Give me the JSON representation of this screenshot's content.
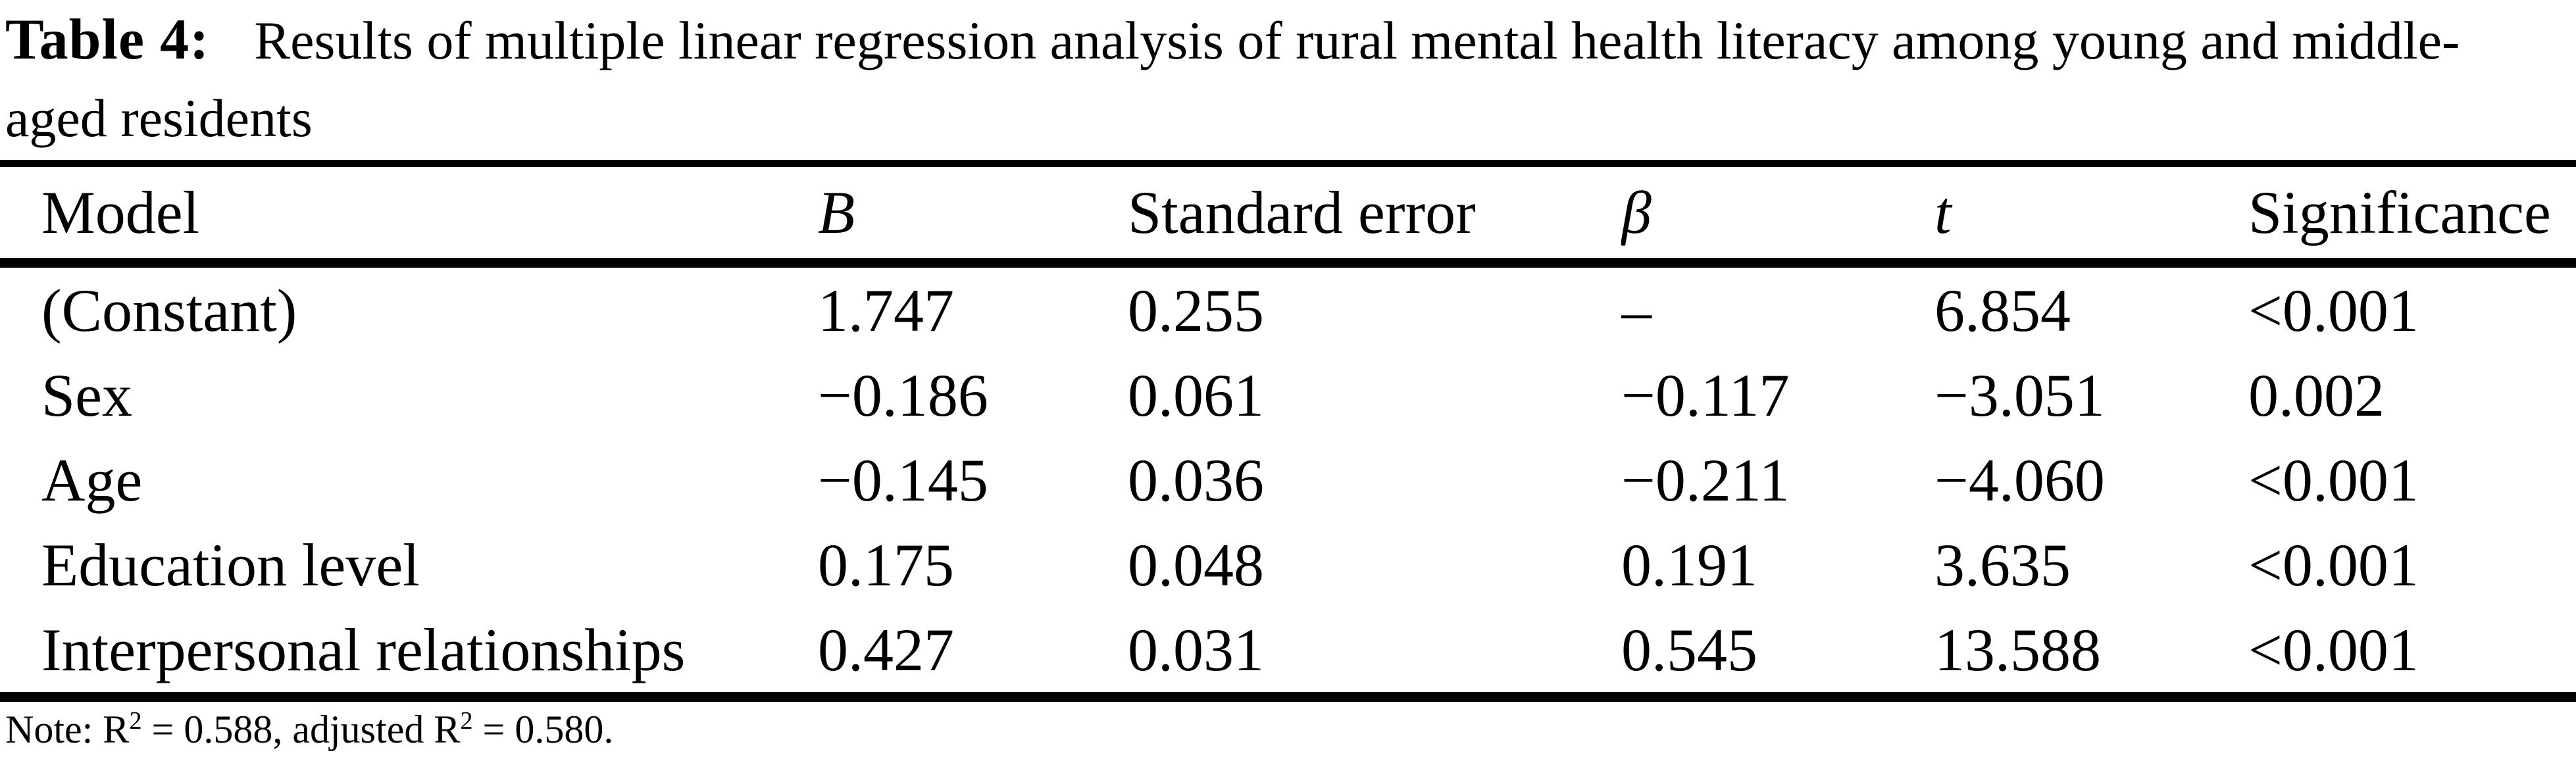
{
  "title": {
    "label": "Table 4:",
    "line1": "Results of multiple linear regression analysis of rural mental health literacy among young and middle-",
    "line2": "aged residents"
  },
  "table": {
    "columns": [
      "Model",
      "B",
      "Standard error",
      "β",
      "t",
      "Significance"
    ],
    "rows": [
      [
        "(Constant)",
        "1.747",
        "0.255",
        "–",
        "6.854",
        "<0.001"
      ],
      [
        "Sex",
        "−0.186",
        "0.061",
        "−0.117",
        "−3.051",
        "0.002"
      ],
      [
        "Age",
        "−0.145",
        "0.036",
        "−0.211",
        "−4.060",
        "<0.001"
      ],
      [
        "Education level",
        "0.175",
        "0.048",
        "0.191",
        "3.635",
        "<0.001"
      ],
      [
        "Interpersonal relationships",
        "0.427",
        "0.031",
        "0.545",
        "13.588",
        "<0.001"
      ]
    ]
  },
  "note": {
    "prefix": "Note: R",
    "sup1": "2",
    "mid": " = 0.588, adjusted R",
    "sup2": "2",
    "end": " = 0.580."
  },
  "chart_data": {
    "type": "table",
    "title": "Table 4: Results of multiple linear regression analysis of rural mental health literacy among young and middle-aged residents",
    "columns": [
      "Model",
      "B",
      "Standard error",
      "β",
      "t",
      "Significance"
    ],
    "rows": [
      [
        "(Constant)",
        1.747,
        0.255,
        null,
        6.854,
        "<0.001"
      ],
      [
        "Sex",
        -0.186,
        0.061,
        -0.117,
        -3.051,
        0.002
      ],
      [
        "Age",
        -0.145,
        0.036,
        -0.211,
        -4.06,
        "<0.001"
      ],
      [
        "Education level",
        0.175,
        0.048,
        0.191,
        3.635,
        "<0.001"
      ],
      [
        "Interpersonal relationships",
        0.427,
        0.031,
        0.545,
        13.588,
        "<0.001"
      ]
    ],
    "note": "Note: R2 = 0.588, adjusted R2 = 0.580.",
    "r_squared": 0.588,
    "adjusted_r_squared": 0.58
  }
}
